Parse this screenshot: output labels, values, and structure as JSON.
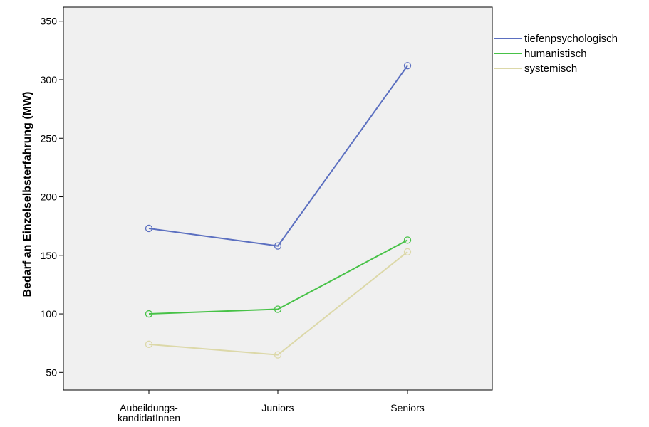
{
  "chart_data": {
    "type": "line",
    "title": "",
    "xlabel": "",
    "ylabel": "Bedarf an Einzelselbsterfahrung (MW)",
    "categories": [
      "Aubeildungs- kandidatInnen",
      "Juniors",
      "Seniors"
    ],
    "category_lines": [
      [
        "Aubeildungs-",
        "kandidatInnen"
      ],
      [
        "Juniors"
      ],
      [
        "Seniors"
      ]
    ],
    "ylim": [
      35,
      362
    ],
    "yticks": [
      50,
      100,
      150,
      200,
      250,
      300,
      350
    ],
    "grid": false,
    "legend_position": "right",
    "series": [
      {
        "name": "tiefenpsychologisch",
        "color": "#5b6fc0",
        "values": [
          173,
          158,
          312
        ]
      },
      {
        "name": "humanistisch",
        "color": "#47c247",
        "values": [
          100,
          104,
          163
        ]
      },
      {
        "name": "systemisch",
        "color": "#dcd8a8",
        "values": [
          74,
          65,
          153
        ]
      }
    ]
  },
  "colors": {
    "plot_background": "#f0f0f0",
    "axis": "#000000"
  }
}
